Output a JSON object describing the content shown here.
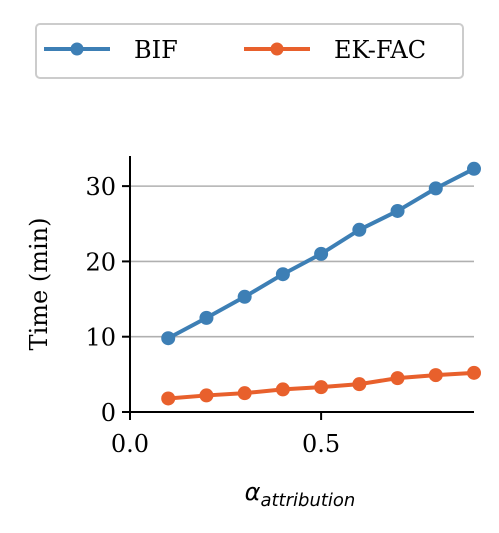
{
  "chart_data": {
    "type": "line",
    "xlabel": "α",
    "xlabel_sub": "attribution",
    "ylabel": "Time (min)",
    "xlim": [
      0.0,
      0.9
    ],
    "ylim": [
      0,
      34
    ],
    "xticks": [
      0.0,
      0.5
    ],
    "xtick_labels": [
      "0.0",
      "0.5"
    ],
    "yticks": [
      0,
      10,
      20,
      30
    ],
    "ytick_labels": [
      "0",
      "10",
      "20",
      "30"
    ],
    "grid": "horizontal",
    "legend": "top",
    "x": [
      0.1,
      0.2,
      0.3,
      0.4,
      0.5,
      0.6,
      0.7,
      0.8,
      0.9
    ],
    "series": [
      {
        "name": "BIF",
        "color": "#3d7fb5",
        "values": [
          9.8,
          12.5,
          15.3,
          18.3,
          21.0,
          24.2,
          26.7,
          29.7,
          32.3
        ]
      },
      {
        "name": "EK-FAC",
        "color": "#e8602c",
        "values": [
          1.8,
          2.2,
          2.5,
          3.0,
          3.3,
          3.7,
          4.5,
          4.9,
          5.2
        ]
      }
    ]
  }
}
